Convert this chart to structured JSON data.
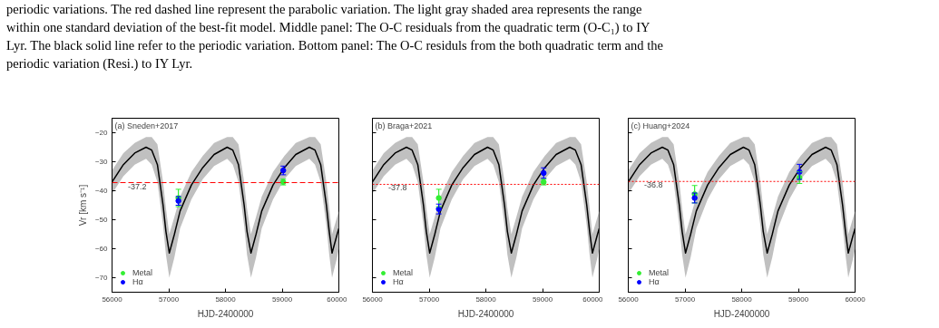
{
  "chart_data": [
    {
      "type": "line",
      "title": "(a) Sneden+2017",
      "xlabel": "HJD-2400000",
      "ylabel": "Vr [km s⁻¹]",
      "annotations": [
        "within one standard deviation of the best-fit model. Middle panel: The O-C residuals from the quadratic term (O-C₁) to IY",
        "Lyr. The black solid line refer to the periodic variation. Bottom panel: The O-C residuls from the both quadratic term and the",
        "periodic variation (Resi.) to IY Lyr.",
        "periodic variations. The red dashed line represent the parabolic variation. The light gray shaded area represents the range"
      ],
      "xlim": [
        56000,
        60000
      ],
      "xticks": [
        56000,
        57000,
        58000,
        59000,
        60000
      ],
      "ylim": [
        -75,
        -15
      ],
      "yticks": [
        -20,
        -30,
        -40,
        -50,
        -60,
        -70
      ],
      "grid": false,
      "legend": "bottom left",
      "ref_lines": [
        {
          "axis": "y",
          "value": -37.2,
          "label": "-37.2",
          "color": "#ff0000",
          "line_style": "dashed"
        }
      ],
      "series": [
        {
          "type": "line",
          "color": "#000000",
          "line_style": "solid",
          "x": [
            56000,
            56200,
            56400,
            56600,
            56700,
            56800,
            56900,
            56950,
            57010,
            57100,
            57200,
            57400,
            57600,
            57800,
            58030,
            58130,
            58230,
            58330,
            58380,
            58450,
            58540,
            58640,
            58840,
            59040,
            59240,
            59480,
            59580,
            59680,
            59780,
            59830,
            59880,
            59970,
            60000
          ],
          "values": [
            -37,
            -31,
            -27,
            -25,
            -26,
            -31,
            -45,
            -54,
            -61.5,
            -55,
            -47,
            -38,
            -32,
            -27.5,
            -25,
            -26,
            -31,
            -45,
            -54,
            -61.5,
            -55,
            -47,
            -38,
            -32,
            -27.5,
            -25,
            -26,
            -31,
            -45,
            -54,
            -61.5,
            -55,
            -53
          ],
          "lower": [
            -41,
            -35,
            -31,
            -29,
            -31,
            -37,
            -52,
            -62,
            -70,
            -63,
            -53,
            -43,
            -36,
            -31.5,
            -29,
            -31,
            -37,
            -52,
            -62,
            -70,
            -63,
            -53,
            -43,
            -36,
            -31.5,
            -29,
            -31,
            -37,
            -52,
            -62,
            -70,
            -63,
            -60
          ],
          "upper": [
            -33,
            -27,
            -23.5,
            -21.5,
            -21.5,
            -24,
            -37,
            -46,
            -55,
            -49,
            -42,
            -33.5,
            -28,
            -23.5,
            -21.5,
            -21.5,
            -24,
            -37,
            -46,
            -55,
            -49,
            -42,
            -33.5,
            -28,
            -23.5,
            -21.5,
            -21.5,
            -24,
            -37,
            -46,
            -55,
            -49,
            -47
          ]
        },
        {
          "type": "scatter",
          "marker": "circle",
          "name": "Metal",
          "color": "#33ee33",
          "x": [
            57170,
            59020
          ],
          "values": [
            -42.5,
            -37
          ],
          "errors": [
            3,
            1
          ]
        },
        {
          "type": "scatter",
          "marker": "circle",
          "name": "Hα",
          "color": "#0000ff",
          "x": [
            57170,
            59020
          ],
          "values": [
            -43.5,
            -33
          ],
          "errors": [
            1.5,
            1.5
          ]
        }
      ]
    },
    {
      "type": "line",
      "title": "(b) Braga+2021",
      "xlabel": "HJD-2400000",
      "tick_labels": "x",
      "xlim": [
        56000,
        60000
      ],
      "xticks": [
        56000,
        57000,
        58000,
        59000,
        60000
      ],
      "ylim": [
        -75,
        -15
      ],
      "yticks": [
        -20,
        -30,
        -40,
        -50,
        -60,
        -70
      ],
      "grid": false,
      "legend": "bottom left",
      "ref_lines": [
        {
          "axis": "y",
          "value": -37.8,
          "label": "-37.8",
          "color": "#ff0000",
          "line_style": "dotted"
        }
      ],
      "series": [
        {
          "type": "line",
          "color": "#000000",
          "line_style": "solid",
          "x": [
            56000,
            56200,
            56400,
            56600,
            56700,
            56800,
            56900,
            56950,
            57010,
            57100,
            57200,
            57400,
            57600,
            57800,
            58030,
            58130,
            58230,
            58330,
            58380,
            58450,
            58540,
            58640,
            58840,
            59040,
            59240,
            59480,
            59580,
            59680,
            59780,
            59830,
            59880,
            59970,
            60000
          ],
          "values": [
            -37,
            -31,
            -27,
            -25,
            -26,
            -31,
            -45,
            -54,
            -61.5,
            -55,
            -47,
            -38,
            -32,
            -27.5,
            -25,
            -26,
            -31,
            -45,
            -54,
            -61.5,
            -55,
            -47,
            -38,
            -32,
            -27.5,
            -25,
            -26,
            -31,
            -45,
            -54,
            -61.5,
            -55,
            -53
          ],
          "lower": [
            -41,
            -35,
            -31,
            -29,
            -31,
            -37,
            -52,
            -62,
            -70,
            -63,
            -53,
            -43,
            -36,
            -31.5,
            -29,
            -31,
            -37,
            -52,
            -62,
            -70,
            -63,
            -53,
            -43,
            -36,
            -31.5,
            -29,
            -31,
            -37,
            -52,
            -62,
            -70,
            -63,
            -60
          ],
          "upper": [
            -33,
            -27,
            -23.5,
            -21.5,
            -21.5,
            -24,
            -37,
            -46,
            -55,
            -49,
            -42,
            -33.5,
            -28,
            -23.5,
            -21.5,
            -21.5,
            -24,
            -37,
            -46,
            -55,
            -49,
            -42,
            -33.5,
            -28,
            -23.5,
            -21.5,
            -21.5,
            -24,
            -37,
            -46,
            -55,
            -49,
            -47
          ]
        },
        {
          "type": "scatter",
          "marker": "circle",
          "name": "Metal",
          "color": "#33ee33",
          "x": [
            57170,
            59020
          ],
          "values": [
            -42.5,
            -37
          ],
          "errors": [
            3,
            1
          ]
        },
        {
          "type": "scatter",
          "marker": "circle",
          "name": "Hα",
          "color": "#0000ff",
          "x": [
            57170,
            59020
          ],
          "values": [
            -46.3,
            -33.9
          ],
          "errors": [
            1.7,
            1.8
          ]
        }
      ]
    },
    {
      "type": "line",
      "title": "(c) Huang+2024",
      "xlabel": "HJD-2400000",
      "tick_labels": "x",
      "xlim": [
        56000,
        60000
      ],
      "xticks": [
        56000,
        57000,
        58000,
        59000,
        60000
      ],
      "ylim": [
        -75,
        -15
      ],
      "yticks": [
        -20,
        -30,
        -40,
        -50,
        -60,
        -70
      ],
      "grid": false,
      "legend": "bottom left",
      "ref_lines": [
        {
          "axis": "y",
          "value": -36.8,
          "label": "-36.8",
          "color": "#ff0000",
          "line_style": "dotted"
        }
      ],
      "series": [
        {
          "type": "line",
          "color": "#000000",
          "line_style": "solid",
          "x": [
            56000,
            56200,
            56400,
            56600,
            56700,
            56800,
            56900,
            56950,
            57010,
            57100,
            57200,
            57400,
            57600,
            57800,
            58030,
            58130,
            58230,
            58330,
            58380,
            58450,
            58540,
            58640,
            58840,
            59040,
            59240,
            59480,
            59580,
            59680,
            59780,
            59830,
            59880,
            59970,
            60000
          ],
          "values": [
            -37,
            -31,
            -27,
            -25,
            -26,
            -31,
            -45,
            -54,
            -61.5,
            -55,
            -47,
            -38,
            -32,
            -27.5,
            -25,
            -26,
            -31,
            -45,
            -54,
            -61.5,
            -55,
            -47,
            -38,
            -32,
            -27.5,
            -25,
            -26,
            -31,
            -45,
            -54,
            -61.5,
            -55,
            -53
          ],
          "lower": [
            -41,
            -35,
            -31,
            -29,
            -31,
            -37,
            -52,
            -62,
            -70,
            -63,
            -53,
            -43,
            -36,
            -31.5,
            -29,
            -31,
            -37,
            -52,
            -62,
            -70,
            -63,
            -53,
            -43,
            -36,
            -31.5,
            -29,
            -31,
            -37,
            -52,
            -62,
            -70,
            -63,
            -60
          ],
          "upper": [
            -33,
            -27,
            -23.5,
            -21.5,
            -21.5,
            -24,
            -37,
            -46,
            -55,
            -49,
            -42,
            -33.5,
            -28,
            -23.5,
            -21.5,
            -21.5,
            -24,
            -37,
            -46,
            -55,
            -49,
            -42,
            -33.5,
            -28,
            -23.5,
            -21.5,
            -21.5,
            -24,
            -37,
            -46,
            -55,
            -49,
            -47
          ]
        },
        {
          "type": "scatter",
          "marker": "circle",
          "name": "Metal",
          "color": "#33ee33",
          "x": [
            57170,
            59020
          ],
          "values": [
            -41.2,
            -35.5
          ],
          "errors": [
            3,
            2
          ]
        },
        {
          "type": "scatter",
          "marker": "circle",
          "name": "Hα",
          "color": "#0000ff",
          "x": [
            57170,
            59020
          ],
          "values": [
            -42.5,
            -33.5
          ],
          "errors": [
            1.7,
            2.6
          ]
        }
      ]
    }
  ]
}
